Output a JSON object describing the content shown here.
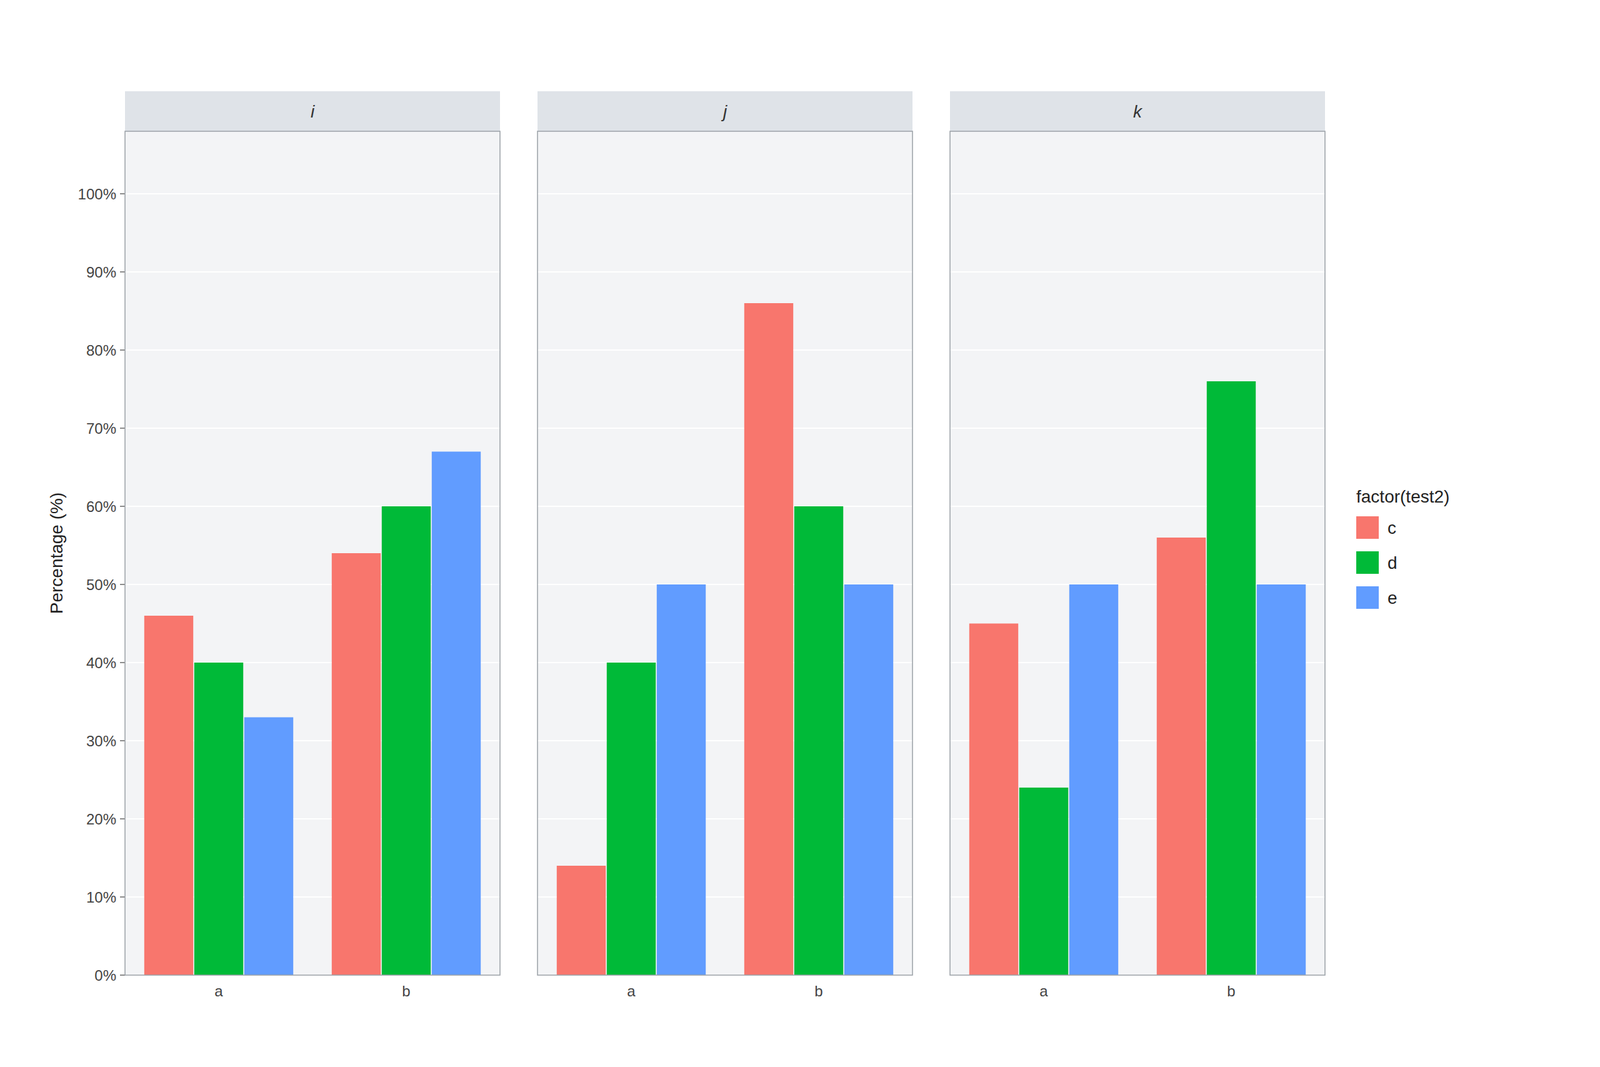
{
  "chart_data": [
    {
      "type": "bar",
      "title": "i",
      "ylabel": "Percentage (%)",
      "categories": [
        "a",
        "b"
      ],
      "series": [
        {
          "name": "c",
          "color": "#F8766D",
          "values": [
            0.46,
            0.54
          ]
        },
        {
          "name": "d",
          "color": "#00BA38",
          "values": [
            0.4,
            0.6
          ]
        },
        {
          "name": "e",
          "color": "#619CFF",
          "values": [
            0.33,
            0.67
          ]
        }
      ],
      "ylim": [
        0,
        1.08
      ],
      "yticks": [
        {
          "value": 0.0,
          "label": "0%"
        },
        {
          "value": 0.1,
          "label": "10%"
        },
        {
          "value": 0.2,
          "label": "20%"
        },
        {
          "value": 0.3,
          "label": "30%"
        },
        {
          "value": 0.4,
          "label": "40%"
        },
        {
          "value": 0.5,
          "label": "50%"
        },
        {
          "value": 0.6,
          "label": "60%"
        },
        {
          "value": 0.7,
          "label": "70%"
        },
        {
          "value": 0.8,
          "label": "80%"
        },
        {
          "value": 0.9,
          "label": "90%"
        },
        {
          "value": 1.0,
          "label": "100%"
        }
      ],
      "grid": true
    },
    {
      "type": "bar",
      "title": "j",
      "categories": [
        "a",
        "b"
      ],
      "series": [
        {
          "name": "c",
          "color": "#F8766D",
          "values": [
            0.14,
            0.86
          ]
        },
        {
          "name": "d",
          "color": "#00BA38",
          "values": [
            0.4,
            0.6
          ]
        },
        {
          "name": "e",
          "color": "#619CFF",
          "values": [
            0.5,
            0.5
          ]
        }
      ],
      "ylim": [
        0,
        1.08
      ],
      "yticks": [
        0.0,
        0.1,
        0.2,
        0.3,
        0.4,
        0.5,
        0.6,
        0.7,
        0.8,
        0.9,
        1.0
      ],
      "tick_labels": "x",
      "grid": true
    },
    {
      "type": "bar",
      "title": "k",
      "categories": [
        "a",
        "b"
      ],
      "series": [
        {
          "name": "c",
          "color": "#F8766D",
          "values": [
            0.45,
            0.56
          ]
        },
        {
          "name": "d",
          "color": "#00BA38",
          "values": [
            0.24,
            0.76
          ]
        },
        {
          "name": "e",
          "color": "#619CFF",
          "values": [
            0.5,
            0.5
          ]
        }
      ],
      "ylim": [
        0,
        1.08
      ],
      "yticks": [
        0.0,
        0.1,
        0.2,
        0.3,
        0.4,
        0.5,
        0.6,
        0.7,
        0.8,
        0.9,
        1.0
      ],
      "tick_labels": "x",
      "grid": true,
      "legend": "right",
      "legend_title": "factor(test2)"
    }
  ]
}
